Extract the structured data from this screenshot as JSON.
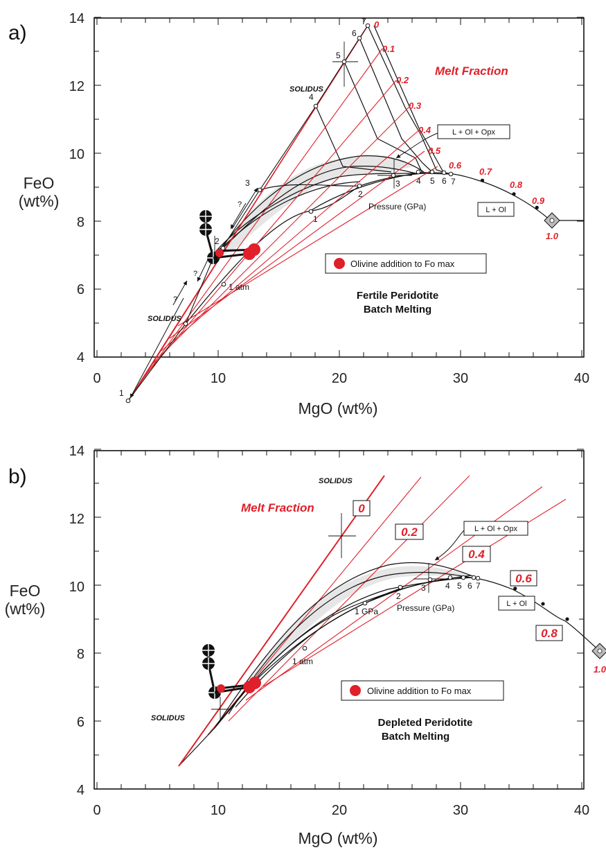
{
  "chart_data": [
    {
      "type": "line",
      "panel_label": "a)",
      "xlabel": "MgO   (wt%)",
      "ylabel_line1": "FeO",
      "ylabel_line2": "(wt%)",
      "xlim": [
        0,
        40
      ],
      "ylim": [
        4,
        14
      ],
      "xticks": [
        0,
        10,
        20,
        30,
        40
      ],
      "yticks": [
        4,
        6,
        8,
        10,
        12,
        14
      ],
      "melt_fraction_title": "Melt Fraction",
      "solidus_labels": [
        "SOLIDUS",
        "SOLIDUS"
      ],
      "olivine_legend": "Olivine addition to Fo max",
      "caption_line1": "Fertile Peridotite",
      "caption_line2": "Batch Melting",
      "box_opx": "L + Ol + Opx",
      "box_ol": "L + Ol",
      "pressure_label": "Pressure  (GPa)",
      "atm_label": "1 atm",
      "melt_fraction_labels": [
        "0",
        "0.1",
        "0.2",
        "0.3",
        "0.4",
        "0.5",
        "0.6",
        "0.7",
        "0.8",
        "0.9",
        "1.0"
      ],
      "solidus_pressure_points": [
        {
          "label": "1",
          "x": 2.7,
          "y": 2.8
        },
        {
          "label": "2",
          "x": 10.6,
          "y": 7.1
        },
        {
          "label": "3",
          "x": 13.7,
          "y": 8.85
        },
        {
          "label": "4",
          "x": 18.1,
          "y": 11.35
        },
        {
          "label": "5",
          "x": 22.0,
          "y": 12.65
        },
        {
          "label": "6",
          "x": 22.0,
          "y": 13.35
        },
        {
          "label": "7",
          "x": 22.0,
          "y": 13.75
        }
      ],
      "olivine_pressure_points": [
        {
          "label": "1",
          "x": 17.8,
          "y": 8.25
        },
        {
          "label": "2",
          "x": 21.8,
          "y": 9.0
        },
        {
          "label": "3",
          "x": 24.6,
          "y": 9.35
        },
        {
          "label": "4",
          "x": 26.8,
          "y": 9.4
        },
        {
          "label": "5",
          "x": 27.8,
          "y": 9.4
        },
        {
          "label": "6",
          "x": 28.8,
          "y": 9.4
        },
        {
          "label": "7",
          "x": 29.5,
          "y": 9.35
        }
      ],
      "olivine_control_melt_fractions": [
        {
          "f": "0.7",
          "x": 31.8,
          "y": 9.2
        },
        {
          "f": "0.8",
          "x": 34.4,
          "y": 8.8
        },
        {
          "f": "0.9",
          "x": 36.3,
          "y": 8.4
        },
        {
          "f": "1.0",
          "x": 38.0,
          "y": 8.0
        }
      ],
      "one_atm_point": {
        "x": 10.5,
        "y": 6.1
      },
      "olivine_addition_points": [
        {
          "x": 12.6,
          "y": 7.05
        },
        {
          "x": 13.0,
          "y": 7.15
        },
        {
          "x": 10.1,
          "y": 7.0
        }
      ]
    },
    {
      "type": "line",
      "panel_label": "b)",
      "xlabel": "MgO   (wt%)",
      "ylabel_line1": "FeO",
      "ylabel_line2": "(wt%)",
      "xlim": [
        0,
        40
      ],
      "ylim": [
        4,
        14
      ],
      "xticks": [
        0,
        10,
        20,
        30,
        40
      ],
      "yticks": [
        4,
        6,
        8,
        10,
        12,
        14
      ],
      "melt_fraction_title": "Melt Fraction",
      "solidus_labels": [
        "SOLIDUS",
        "SOLIDUS"
      ],
      "olivine_legend": "Olivine addition to Fo max",
      "caption_line1": "Depleted Peridotite",
      "caption_line2": "Batch Melting",
      "box_opx": "L + Ol + Opx",
      "box_ol": "L + Ol",
      "pressure_label": "Pressure   (GPa)",
      "gpa_label": "1 GPa",
      "atm_label": "1 atm",
      "melt_fraction_boxes": [
        "0",
        "0.2",
        "0.4",
        "0.6",
        "0.8"
      ],
      "end_label": "1.0",
      "olivine_pressure_points": [
        {
          "label": "1 GPa",
          "x": 22.1,
          "y": 9.45
        },
        {
          "label": "2",
          "x": 24.2,
          "y": 9.95
        },
        {
          "label": "3",
          "x": 27.5,
          "y": 10.15
        },
        {
          "label": "4",
          "x": 29.2,
          "y": 10.2
        },
        {
          "label": "5",
          "x": 30.2,
          "y": 10.2
        },
        {
          "label": "6",
          "x": 31.1,
          "y": 10.2
        },
        {
          "label": "7",
          "x": 31.4,
          "y": 10.2
        }
      ],
      "olivine_control_melt_fractions": [
        {
          "f": "0.6",
          "x": 34.5,
          "y": 9.9
        },
        {
          "f": "",
          "x": 36.8,
          "y": 9.45
        },
        {
          "f": "0.8",
          "x": 38.8,
          "y": 9.0
        },
        {
          "f": "1.0",
          "x": 41.8,
          "y": 8.05
        }
      ],
      "one_atm_point": {
        "x": 17.0,
        "y": 8.2
      },
      "olivine_addition_points": [
        {
          "x": 12.5,
          "y": 7.0
        },
        {
          "x": 13.0,
          "y": 7.15
        },
        {
          "x": 10.3,
          "y": 6.95
        }
      ]
    }
  ]
}
